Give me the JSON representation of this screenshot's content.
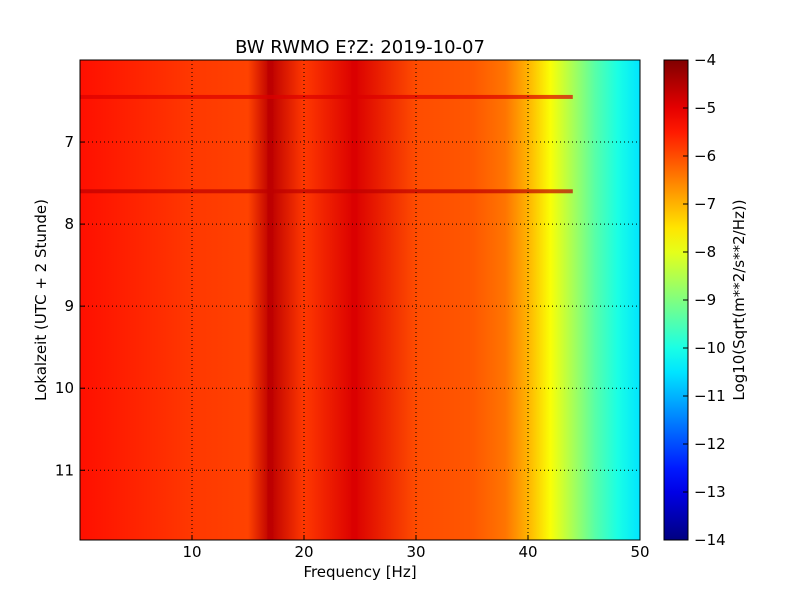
{
  "chart_data": {
    "type": "heatmap",
    "title": "BW RWMO E?Z: 2019-10-07",
    "xlabel": "Frequency [Hz]",
    "ylabel": "Lokalzeit (UTC + 2 Stunde)",
    "colorbar_label": "Log10(Sqrt(m**2/s**2/Hz))",
    "xlim": [
      0,
      50
    ],
    "ylim": [
      11.85,
      6.0
    ],
    "x_ticks": [
      "10",
      "20",
      "30",
      "40",
      "50"
    ],
    "y_ticks": [
      "7",
      "8",
      "9",
      "10",
      "11"
    ],
    "colorbar_range": [
      -14,
      -4
    ],
    "colorbar_ticks": [
      "-4",
      "-5",
      "-6",
      "-7",
      "-8",
      "-9",
      "-10",
      "-11",
      "-12",
      "-13",
      "-14"
    ],
    "colormap": "jet",
    "grid": true,
    "frequency_profile": {
      "frequency_hz": [
        0,
        10,
        15,
        17,
        20,
        24.5,
        30,
        35,
        38,
        40,
        42,
        44,
        46,
        48,
        50
      ],
      "log10_amplitude": [
        -5.4,
        -5.8,
        -5.9,
        -4.6,
        -5.8,
        -4.9,
        -6.0,
        -6.1,
        -6.4,
        -7.0,
        -7.8,
        -8.6,
        -9.4,
        -10.0,
        -10.5
      ]
    },
    "strong_lines_hz": [
      17,
      24.5
    ],
    "high_amplitude_time_bands": [
      {
        "time": 6.45,
        "freq_range": [
          0,
          44
        ],
        "value": -4.9
      },
      {
        "time": 7.6,
        "freq_range": [
          0,
          44
        ],
        "value": -4.6
      }
    ]
  }
}
